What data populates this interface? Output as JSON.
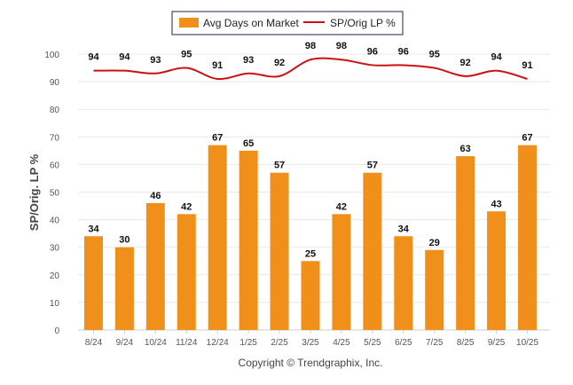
{
  "chart_data": {
    "type": "bar+line",
    "categories": [
      "8/24",
      "9/24",
      "10/24",
      "11/24",
      "12/24",
      "1/25",
      "2/25",
      "3/25",
      "4/25",
      "5/25",
      "6/25",
      "7/25",
      "8/25",
      "9/25",
      "10/25"
    ],
    "series": [
      {
        "name": "Avg Days on Market",
        "type": "bar",
        "color": "#f0901a",
        "values": [
          34,
          30,
          46,
          42,
          67,
          65,
          57,
          25,
          42,
          57,
          34,
          29,
          63,
          43,
          67
        ]
      },
      {
        "name": "SP/Orig LP %",
        "type": "line",
        "color": "#cc1111",
        "values": [
          94,
          94,
          93,
          95,
          91,
          93,
          92,
          98,
          98,
          96,
          96,
          95,
          92,
          94,
          91
        ]
      }
    ],
    "ylabel": "SP/Orig. LP %",
    "ylim": [
      0,
      100
    ],
    "yticks": [
      0,
      10,
      20,
      30,
      40,
      50,
      60,
      70,
      80,
      90,
      100
    ],
    "legend_position": "top-center",
    "grid": true
  },
  "footer": {
    "copyright": "Copyright © Trendgraphix, Inc."
  }
}
